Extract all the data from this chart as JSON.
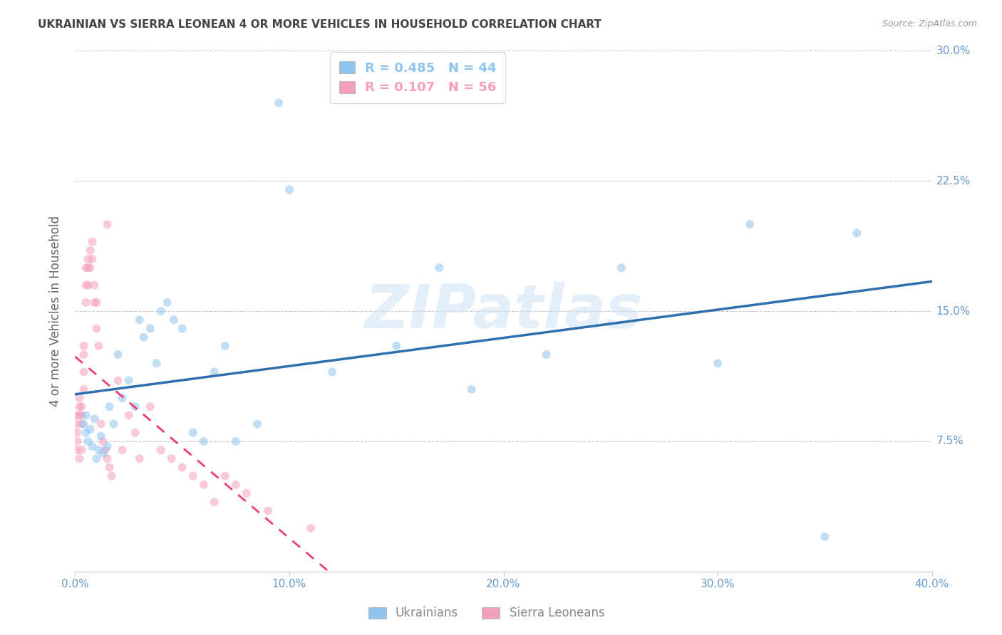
{
  "title": "UKRAINIAN VS SIERRA LEONEAN 4 OR MORE VEHICLES IN HOUSEHOLD CORRELATION CHART",
  "source": "Source: ZipAtlas.com",
  "ylabel": "4 or more Vehicles in Household",
  "xlim": [
    0.0,
    0.4
  ],
  "ylim": [
    0.0,
    0.3
  ],
  "xticks": [
    0.0,
    0.1,
    0.2,
    0.3,
    0.4
  ],
  "yticks": [
    0.0,
    0.075,
    0.15,
    0.225,
    0.3
  ],
  "ytick_labels": [
    "",
    "7.5%",
    "15.0%",
    "22.5%",
    "30.0%"
  ],
  "xtick_labels": [
    "0.0%",
    "10.0%",
    "20.0%",
    "30.0%",
    "40.0%"
  ],
  "legend_r_blue": "R = 0.485   N = 44",
  "legend_r_pink": "R = 0.107   N = 56",
  "legend_bottom_blue": "Ukrainians",
  "legend_bottom_pink": "Sierra Leoneans",
  "watermark": "ZIPatlas",
  "blue_scatter_color": "#8ec4ee",
  "pink_scatter_color": "#f5a0b8",
  "blue_line_color": "#2d6faf",
  "pink_line_color": "#e8406a",
  "background_color": "#ffffff",
  "grid_color": "#cccccc",
  "title_color": "#444444",
  "axis_tick_color": "#6699cc",
  "marker_size": 75,
  "marker_alpha": 0.55,
  "ukrainians_x": [
    0.004,
    0.005,
    0.005,
    0.006,
    0.007,
    0.008,
    0.009,
    0.01,
    0.011,
    0.012,
    0.013,
    0.015,
    0.016,
    0.018,
    0.02,
    0.022,
    0.025,
    0.028,
    0.03,
    0.032,
    0.035,
    0.038,
    0.04,
    0.043,
    0.046,
    0.05,
    0.055,
    0.06,
    0.065,
    0.07,
    0.075,
    0.085,
    0.095,
    0.1,
    0.12,
    0.15,
    0.17,
    0.185,
    0.22,
    0.255,
    0.3,
    0.315,
    0.35,
    0.365
  ],
  "ukrainians_y": [
    0.085,
    0.09,
    0.08,
    0.075,
    0.082,
    0.072,
    0.088,
    0.065,
    0.07,
    0.078,
    0.068,
    0.072,
    0.095,
    0.085,
    0.125,
    0.1,
    0.11,
    0.095,
    0.145,
    0.135,
    0.14,
    0.12,
    0.15,
    0.155,
    0.145,
    0.14,
    0.08,
    0.075,
    0.115,
    0.13,
    0.075,
    0.085,
    0.27,
    0.22,
    0.115,
    0.13,
    0.175,
    0.105,
    0.125,
    0.175,
    0.12,
    0.2,
    0.02,
    0.195
  ],
  "sierraleonean_x": [
    0.001,
    0.001,
    0.001,
    0.001,
    0.001,
    0.002,
    0.002,
    0.002,
    0.002,
    0.003,
    0.003,
    0.003,
    0.003,
    0.004,
    0.004,
    0.004,
    0.004,
    0.005,
    0.005,
    0.005,
    0.006,
    0.006,
    0.006,
    0.007,
    0.007,
    0.008,
    0.008,
    0.009,
    0.009,
    0.01,
    0.01,
    0.011,
    0.012,
    0.013,
    0.014,
    0.015,
    0.016,
    0.017,
    0.02,
    0.022,
    0.025,
    0.028,
    0.03,
    0.035,
    0.04,
    0.045,
    0.05,
    0.055,
    0.06,
    0.065,
    0.07,
    0.075,
    0.08,
    0.09,
    0.11,
    0.015
  ],
  "sierraleonean_y": [
    0.09,
    0.085,
    0.08,
    0.075,
    0.07,
    0.1,
    0.095,
    0.09,
    0.065,
    0.095,
    0.09,
    0.085,
    0.07,
    0.13,
    0.125,
    0.115,
    0.105,
    0.175,
    0.165,
    0.155,
    0.18,
    0.175,
    0.165,
    0.185,
    0.175,
    0.19,
    0.18,
    0.165,
    0.155,
    0.155,
    0.14,
    0.13,
    0.085,
    0.075,
    0.07,
    0.065,
    0.06,
    0.055,
    0.11,
    0.07,
    0.09,
    0.08,
    0.065,
    0.095,
    0.07,
    0.065,
    0.06,
    0.055,
    0.05,
    0.04,
    0.055,
    0.05,
    0.045,
    0.035,
    0.025,
    0.2
  ]
}
